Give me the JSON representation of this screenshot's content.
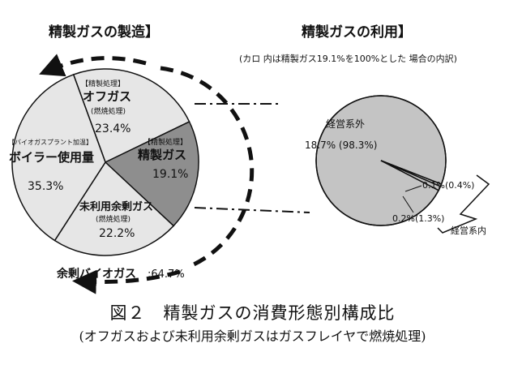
{
  "chart_data": [
    {
      "type": "pie",
      "title": "精製ガスの製造】",
      "slices": [
        {
          "tag": "【精製処理】",
          "label": "オフガス",
          "sub": "(燃焼処理)",
          "pct_label": "23.4%",
          "value": 23.4
        },
        {
          "tag": "【精製処理】",
          "label": "精製ガス",
          "sub": "",
          "pct_label": "19.1%",
          "value": 19.1
        },
        {
          "tag": "",
          "label": "未利用余剰ガス",
          "sub": "(燃焼処理)",
          "pct_label": "22.2%",
          "value": 22.2
        },
        {
          "tag": "【バイオガスプラント加温】",
          "label": "ボイラー使用量",
          "sub": "",
          "pct_label": "35.3%",
          "value": 35.3
        }
      ],
      "annotation": {
        "label": "余剰バイオガス",
        "value": ":64.7%"
      }
    },
    {
      "type": "pie",
      "title": "精製ガスの利用】",
      "subtitle": "(カロ 内は精製ガス19.1%を100%とした 場合の内訳)",
      "slices": [
        {
          "label": "経営系外",
          "pct_label": "18.7% (98.3%)",
          "value": 18.7
        },
        {
          "label": "",
          "pct_label": "0.1%(0.4%)",
          "value": 0.1
        },
        {
          "label": "",
          "pct_label": "0.2%(1.3%)",
          "value": 0.2
        }
      ],
      "bracket_label": "経営系内"
    }
  ],
  "caption": {
    "line1": "図２　精製ガスの消費形態別構成比",
    "line2": "(オフガスおよび未利用余剰ガスはガスフレイヤで燃焼処理)"
  },
  "colors": {
    "left_pie": "#e6e6e6",
    "refined_slice": "#8e8e8e",
    "right_pie": "#c4c4c4",
    "ink": "#111111"
  }
}
